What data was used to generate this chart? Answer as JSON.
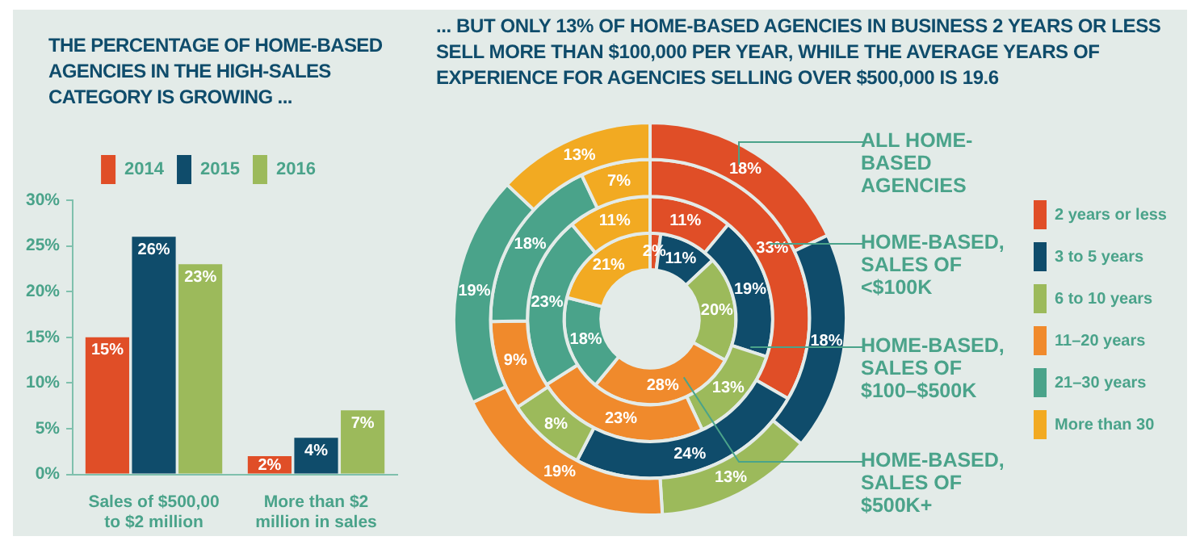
{
  "chart_data": [
    {
      "type": "bar",
      "title": "THE PERCENTAGE OF HOME-BASED AGENCIES IN THE HIGH-SALES CATEGORY IS GROWING ...",
      "categories": [
        "Sales of $500,00 to $2 million",
        "More than $2 million in sales"
      ],
      "series": [
        {
          "name": "2014",
          "color": "#e04e27",
          "values": [
            15,
            2
          ],
          "value_labels": [
            "15%",
            "2%"
          ]
        },
        {
          "name": "2015",
          "color": "#0f4c6b",
          "values": [
            26,
            4
          ],
          "value_labels": [
            "26%",
            "4%"
          ]
        },
        {
          "name": "2016",
          "color": "#9cba5b",
          "values": [
            23,
            7
          ],
          "value_labels": [
            "23%",
            "7%"
          ]
        }
      ],
      "ylim": [
        0,
        30
      ],
      "yticks": [
        {
          "value": 0,
          "label": "0%"
        },
        {
          "value": 5,
          "label": "5%"
        },
        {
          "value": 10,
          "label": "10%"
        },
        {
          "value": 15,
          "label": "15%"
        },
        {
          "value": 20,
          "label": "20%"
        },
        {
          "value": 25,
          "label": "25%"
        },
        {
          "value": 30,
          "label": "30%"
        }
      ],
      "grid": false,
      "legend": "top"
    },
    {
      "type": "donut",
      "title": "... BUT ONLY 13% OF HOME-BASED AGENCIES IN BUSINESS 2 YEARS OR LESS SELL MORE THAN $100,000 PER YEAR, WHILE THE AVERAGE YEARS OF EXPERIENCE FOR AGENCIES SELLING OVER $500,000 IS 19.6",
      "categories": [
        "2 years or less",
        "3 to 5 years",
        "6 to 10 years",
        "11–20 years",
        "21–30 years",
        "More than 30"
      ],
      "colors": [
        "#e04e27",
        "#0f4c6b",
        "#9cba5b",
        "#f08a2c",
        "#4aa38a",
        "#f2aa22"
      ],
      "series": [
        {
          "name": "ALL HOME-BASED AGENCIES",
          "values": [
            18,
            18,
            13,
            19,
            19,
            13
          ],
          "value_labels": [
            "18%",
            "18%",
            "13%",
            "19%",
            "19%",
            "13%"
          ]
        },
        {
          "name": "HOME-BASED, SALES OF <$100K",
          "values": [
            33,
            24,
            8,
            9,
            18,
            7
          ],
          "value_labels": [
            "33%",
            "24%",
            "8%",
            "9%",
            "18%",
            "7%"
          ]
        },
        {
          "name": "HOME-BASED, SALES OF $100–$500K",
          "values": [
            11,
            19,
            13,
            23,
            23,
            11
          ],
          "value_labels": [
            "11%",
            "19%",
            "13%",
            "23%",
            "23%",
            "11%"
          ]
        },
        {
          "name": "HOME-BASED, SALES OF $500K+",
          "values": [
            2,
            11,
            20,
            28,
            18,
            21
          ],
          "value_labels": [
            "2%",
            "11%",
            "20%",
            "28%",
            "18%",
            "21%"
          ]
        }
      ],
      "legend": "right"
    }
  ]
}
